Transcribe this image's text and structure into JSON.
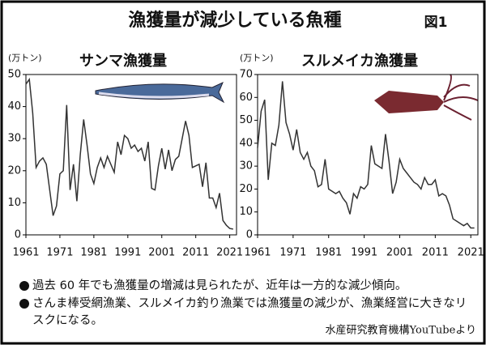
{
  "title": "漁獲量が減少している魚種",
  "figure_label": "図1",
  "notes": [
    "過去 60 年でも漁獲量の増減は見られたが、近年は一方的な減少傾向。",
    "さんま棒受網漁業、スルメイカ釣り漁業では漁獲量の減少が、漁業経営に大きなリスクになる。"
  ],
  "source": "水産研究教育機構YouTubeより",
  "chart_data": [
    {
      "type": "line",
      "title": "サンマ漁獲量",
      "ylabel": "(万トン)",
      "color": "#333333",
      "x": [
        1961,
        1962,
        1963,
        1964,
        1965,
        1966,
        1967,
        1968,
        1969,
        1970,
        1971,
        1972,
        1973,
        1974,
        1975,
        1976,
        1977,
        1978,
        1979,
        1980,
        1981,
        1982,
        1983,
        1984,
        1985,
        1986,
        1987,
        1988,
        1989,
        1990,
        1991,
        1992,
        1993,
        1994,
        1995,
        1996,
        1997,
        1998,
        1999,
        2000,
        2001,
        2002,
        2003,
        2004,
        2005,
        2006,
        2007,
        2008,
        2009,
        2010,
        2011,
        2012,
        2013,
        2014,
        2015,
        2016,
        2017,
        2018,
        2019,
        2020,
        2021,
        2022
      ],
      "values": [
        47,
        48.5,
        38,
        21,
        23,
        24,
        22,
        14,
        6,
        9,
        19,
        20,
        40.5,
        14,
        22,
        10.5,
        25,
        36,
        28,
        19,
        16,
        21,
        24,
        21,
        24.5,
        22,
        19.5,
        29,
        25,
        31,
        30,
        27,
        28,
        26,
        27,
        23,
        29,
        14.5,
        14,
        21.5,
        27,
        20.5,
        26.5,
        20,
        23.5,
        24.5,
        30,
        35.5,
        31,
        21,
        21.5,
        22,
        15,
        22.5,
        11.5,
        11.5,
        8.5,
        13,
        4.5,
        3,
        2,
        1.8
      ],
      "xlim": [
        1961,
        2023
      ],
      "xticks": [
        1961,
        1971,
        1981,
        1991,
        2001,
        2011,
        2021
      ],
      "ylim": [
        0,
        50
      ],
      "yticks": [
        0,
        10,
        20,
        30,
        40,
        50
      ]
    },
    {
      "type": "line",
      "title": "スルメイカ漁獲量",
      "ylabel": "(万トン)",
      "color": "#333333",
      "x": [
        1961,
        1962,
        1963,
        1964,
        1965,
        1966,
        1967,
        1968,
        1969,
        1970,
        1971,
        1972,
        1973,
        1974,
        1975,
        1976,
        1977,
        1978,
        1979,
        1980,
        1981,
        1982,
        1983,
        1984,
        1985,
        1986,
        1987,
        1988,
        1989,
        1990,
        1991,
        1992,
        1993,
        1994,
        1995,
        1996,
        1997,
        1998,
        1999,
        2000,
        2001,
        2002,
        2003,
        2004,
        2005,
        2006,
        2007,
        2008,
        2009,
        2010,
        2011,
        2012,
        2013,
        2014,
        2015,
        2016,
        2017,
        2018,
        2019,
        2020,
        2021,
        2022
      ],
      "values": [
        38,
        54,
        59,
        24,
        40,
        39,
        48,
        67,
        49,
        44,
        37,
        46,
        36,
        33,
        36,
        30,
        28,
        21,
        22,
        33,
        20,
        19,
        18,
        19,
        16,
        14,
        9,
        18,
        16,
        21,
        20,
        22,
        39,
        31,
        30,
        29,
        44,
        32,
        18,
        23,
        33,
        29,
        27,
        25,
        23,
        22,
        20,
        25,
        22,
        22,
        24,
        17,
        18,
        17,
        13,
        7,
        6,
        5,
        4,
        5,
        3,
        3
      ],
      "xlim": [
        1961,
        2023
      ],
      "xticks": [
        1961,
        1971,
        1981,
        1991,
        2001,
        2011,
        2021
      ],
      "ylim": [
        0,
        70
      ],
      "yticks": [
        0,
        10,
        20,
        30,
        40,
        50,
        60,
        70
      ]
    }
  ]
}
